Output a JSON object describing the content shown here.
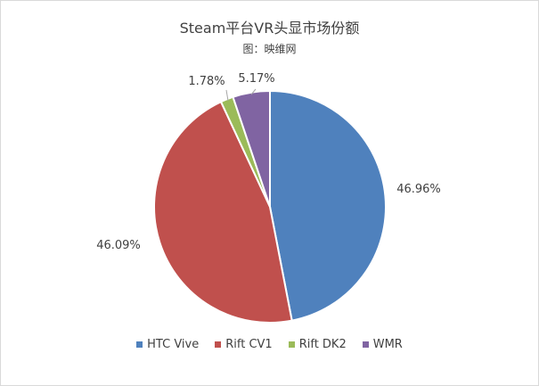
{
  "chart_data": {
    "type": "pie",
    "title": "Steam平台VR头显市场份额",
    "subtitle": "图：映维网",
    "categories": [
      "HTC Vive",
      "Rift CV1",
      "Rift DK2",
      "WMR"
    ],
    "values": [
      46.96,
      46.09,
      1.78,
      5.17
    ],
    "labels": [
      "46.96%",
      "46.09%",
      "1.78%",
      "5.17%"
    ],
    "colors": [
      "#4F81BD",
      "#C0504D",
      "#9BBB59",
      "#8064A2"
    ],
    "legend_position": "bottom"
  }
}
